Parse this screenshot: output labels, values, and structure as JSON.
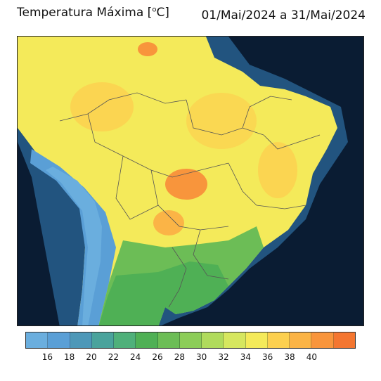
{
  "title": {
    "text": "Temperatura Máxima [",
    "unit_sup": "o",
    "unit_tail": "C]"
  },
  "period": "01/Mai/2024 a 31/Mai/2024",
  "colorbar": {
    "colors": [
      "#6aaede",
      "#5a9fd6",
      "#4d98b8",
      "#4aa39c",
      "#4fb07a",
      "#4fb055",
      "#6cbd56",
      "#8ccd58",
      "#b0db5c",
      "#d6e75f",
      "#f4ea5a",
      "#fcd04f",
      "#fbb446",
      "#f8953c",
      "#f47630"
    ],
    "labels": [
      "16",
      "18",
      "20",
      "22",
      "24",
      "26",
      "28",
      "30",
      "32",
      "34",
      "36",
      "38",
      "40"
    ]
  },
  "map_colors": {
    "ocean": "#0a1c33",
    "ocean_coast": "#22547f",
    "andes": "#5a9fd6",
    "andes_light": "#6aaede",
    "south_cool": "#4fb055",
    "south_mid": "#6cbd56",
    "warm": "#f4ea5a",
    "hot": "#fcd04f",
    "hotter": "#fbb446",
    "hottest": "#f8953c",
    "border": "#555555"
  }
}
